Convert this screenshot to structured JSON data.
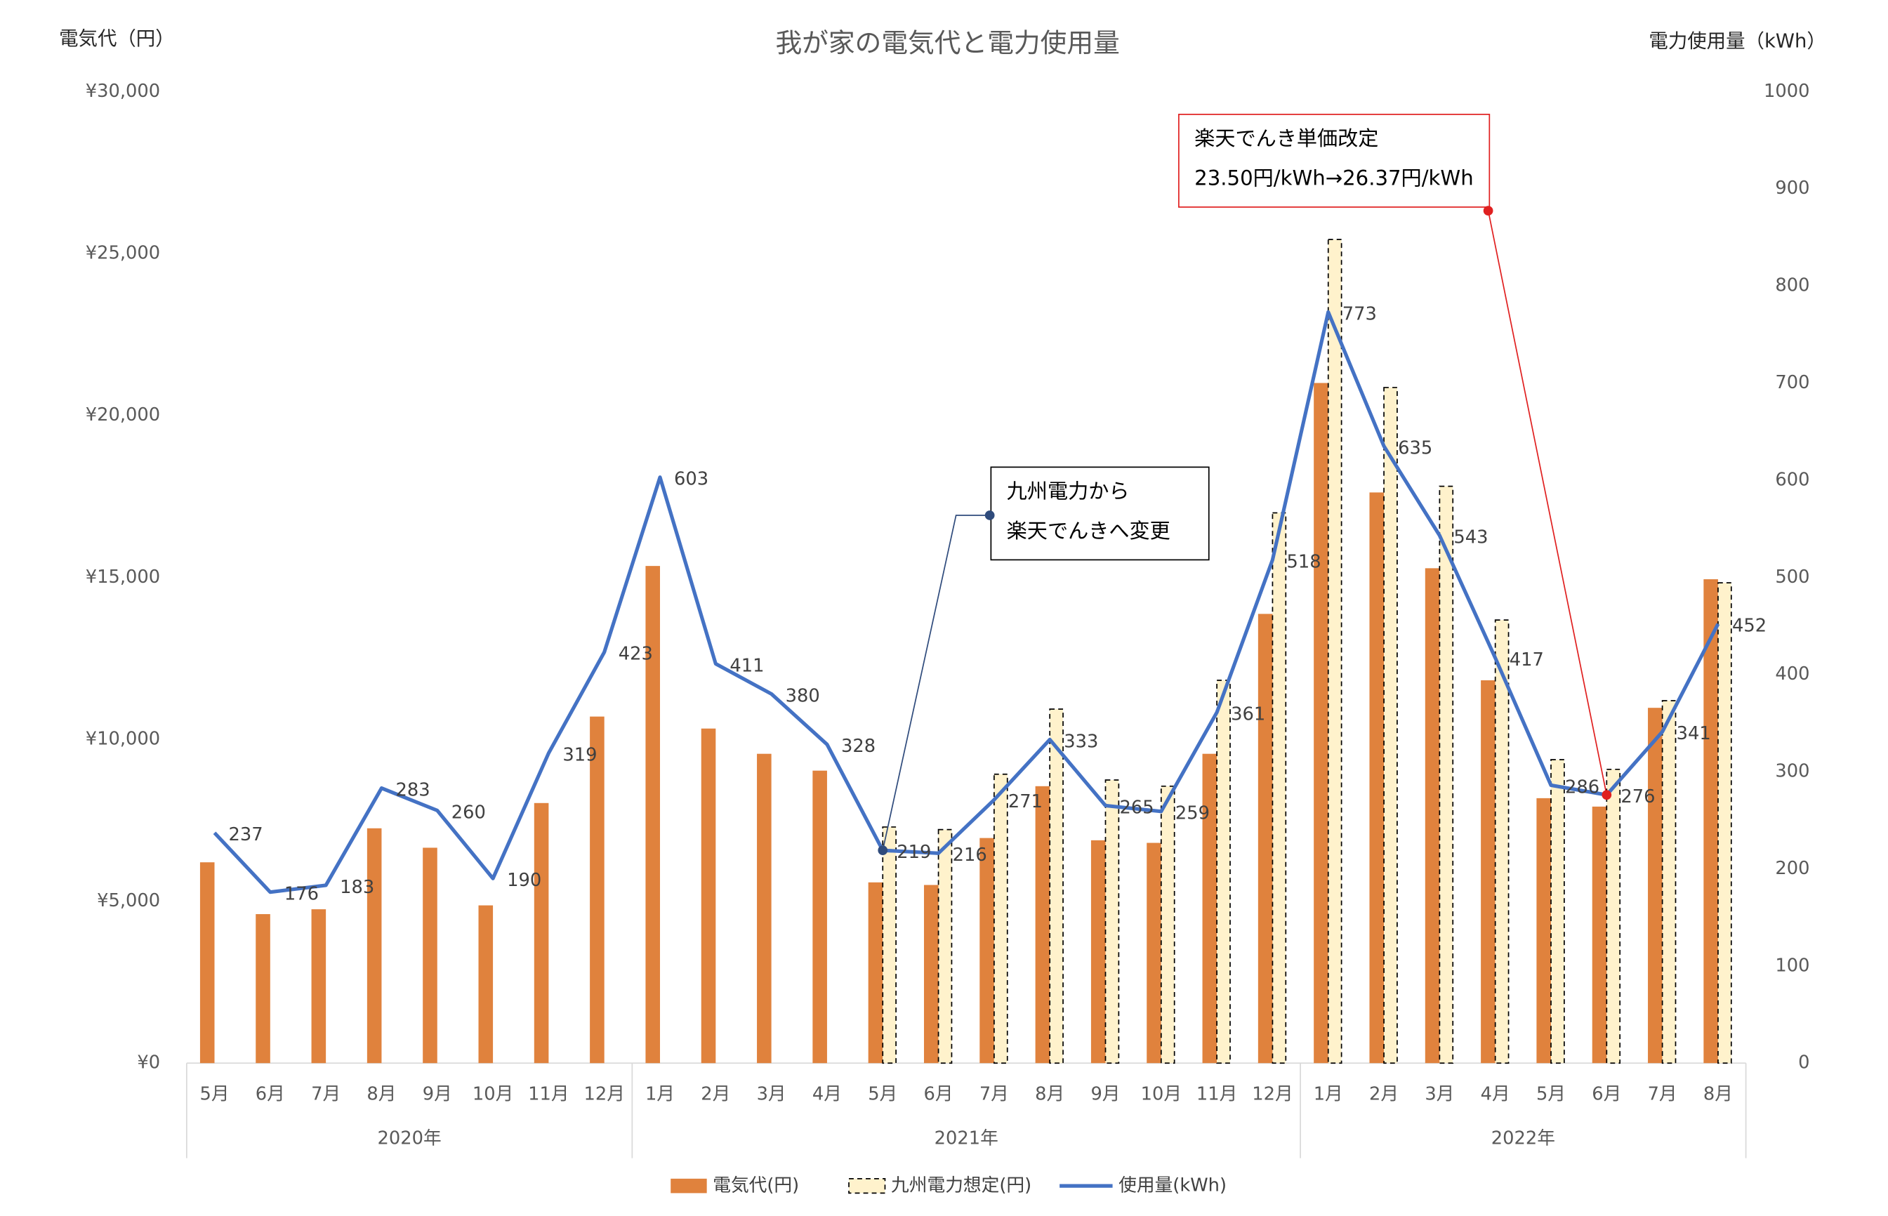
{
  "chart_data": {
    "type": "bar-line",
    "title": "我が家の電気代と電力使用量",
    "y_axis_title": "電気代（円）",
    "y2_axis_title": "電力使用量（kWh）",
    "categories": [
      "5月",
      "6月",
      "7月",
      "8月",
      "9月",
      "10月",
      "11月",
      "12月",
      "1月",
      "2月",
      "3月",
      "4月",
      "5月",
      "6月",
      "7月",
      "8月",
      "9月",
      "10月",
      "11月",
      "12月",
      "1月",
      "2月",
      "3月",
      "4月",
      "5月",
      "6月",
      "7月",
      "8月"
    ],
    "category_groups": [
      {
        "name": "2020年",
        "count": 8
      },
      {
        "name": "2021年",
        "count": 12
      },
      {
        "name": "2022年",
        "count": 8
      }
    ],
    "series": [
      {
        "name": "電気代(円)",
        "type": "bar",
        "color": "#e0823d",
        "values": [
          6200,
          4600,
          4750,
          7250,
          6650,
          4870,
          8030,
          10700,
          15350,
          10330,
          9550,
          9030,
          5580,
          5500,
          6950,
          8550,
          6880,
          6800,
          9550,
          13870,
          21000,
          17620,
          15280,
          11820,
          8180,
          7920,
          10970,
          14940
        ]
      },
      {
        "name": "九州電力想定(円)",
        "type": "bar",
        "color": "#fff2cc",
        "dashed": true,
        "values": [
          null,
          null,
          null,
          null,
          null,
          null,
          null,
          null,
          null,
          null,
          null,
          null,
          7290,
          7210,
          8920,
          10930,
          8740,
          8550,
          11820,
          16990,
          25430,
          20860,
          17810,
          13680,
          9370,
          9070,
          11190,
          14830
        ]
      },
      {
        "name": "使用量(kWh)",
        "type": "line",
        "axis": "y2",
        "color": "#4472c4",
        "data_labels": true,
        "values": [
          237,
          176,
          183,
          283,
          260,
          190,
          319,
          423,
          603,
          411,
          380,
          328,
          219,
          216,
          271,
          333,
          265,
          259,
          361,
          518,
          773,
          635,
          543,
          417,
          286,
          276,
          341,
          452
        ]
      }
    ],
    "ylim": [
      0,
      30000
    ],
    "yticks": [
      {
        "value": 0,
        "label": "¥0"
      },
      {
        "value": 5000,
        "label": "¥5,000"
      },
      {
        "value": 10000,
        "label": "¥10,000"
      },
      {
        "value": 15000,
        "label": "¥15,000"
      },
      {
        "value": 20000,
        "label": "¥20,000"
      },
      {
        "value": 25000,
        "label": "¥25,000"
      },
      {
        "value": 30000,
        "label": "¥30,000"
      }
    ],
    "y2lim": [
      0,
      1000
    ],
    "y2ticks": [
      0,
      100,
      200,
      300,
      400,
      500,
      600,
      700,
      800,
      900,
      1000
    ],
    "grid": false,
    "legend": "bottom",
    "annotations": [
      [
        "九州電力から",
        "楽天でんきへ変更"
      ],
      [
        "楽天でんき単価改定",
        "23.50円/kWh→26.37円/kWh"
      ]
    ]
  }
}
